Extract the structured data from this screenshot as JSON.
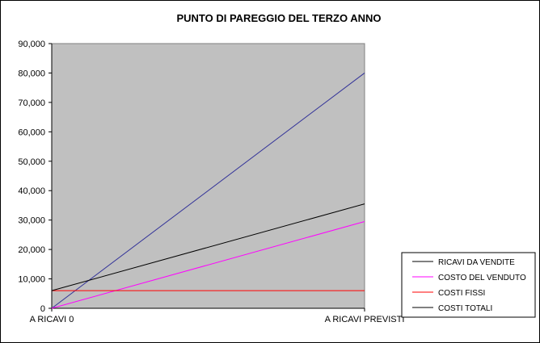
{
  "chart_data": {
    "type": "line",
    "title": "PUNTO DI PAREGGIO DEL TERZO ANNO",
    "categories": [
      "A RICAVI 0",
      "A RICAVI PREVISTI"
    ],
    "ylim": [
      0,
      90000
    ],
    "yticks": [
      0,
      10000,
      20000,
      30000,
      40000,
      50000,
      60000,
      70000,
      80000,
      90000
    ],
    "ytick_labels": [
      "0",
      "10,000",
      "20,000",
      "30,000",
      "40,000",
      "50,000",
      "60,000",
      "70,000",
      "80,000",
      "90,000"
    ],
    "plot_background": "#c0c0c0",
    "series": [
      {
        "name": "RICAVI DA VENDITE",
        "values": [
          0,
          80000
        ],
        "color": "#333399"
      },
      {
        "name": "COSTO DEL VENDUTO",
        "values": [
          0,
          29500
        ],
        "color": "#ff00ff"
      },
      {
        "name": "COSTI FISSI",
        "values": [
          6000,
          6000
        ],
        "color": "#ff0000"
      },
      {
        "name": "COSTI TOTALI",
        "values": [
          6000,
          35500
        ],
        "color": "#000000"
      }
    ],
    "legend_colors": [
      "#000000",
      "#ff00ff",
      "#ff0000",
      "#000000"
    ],
    "legend_position": "bottom-right"
  }
}
